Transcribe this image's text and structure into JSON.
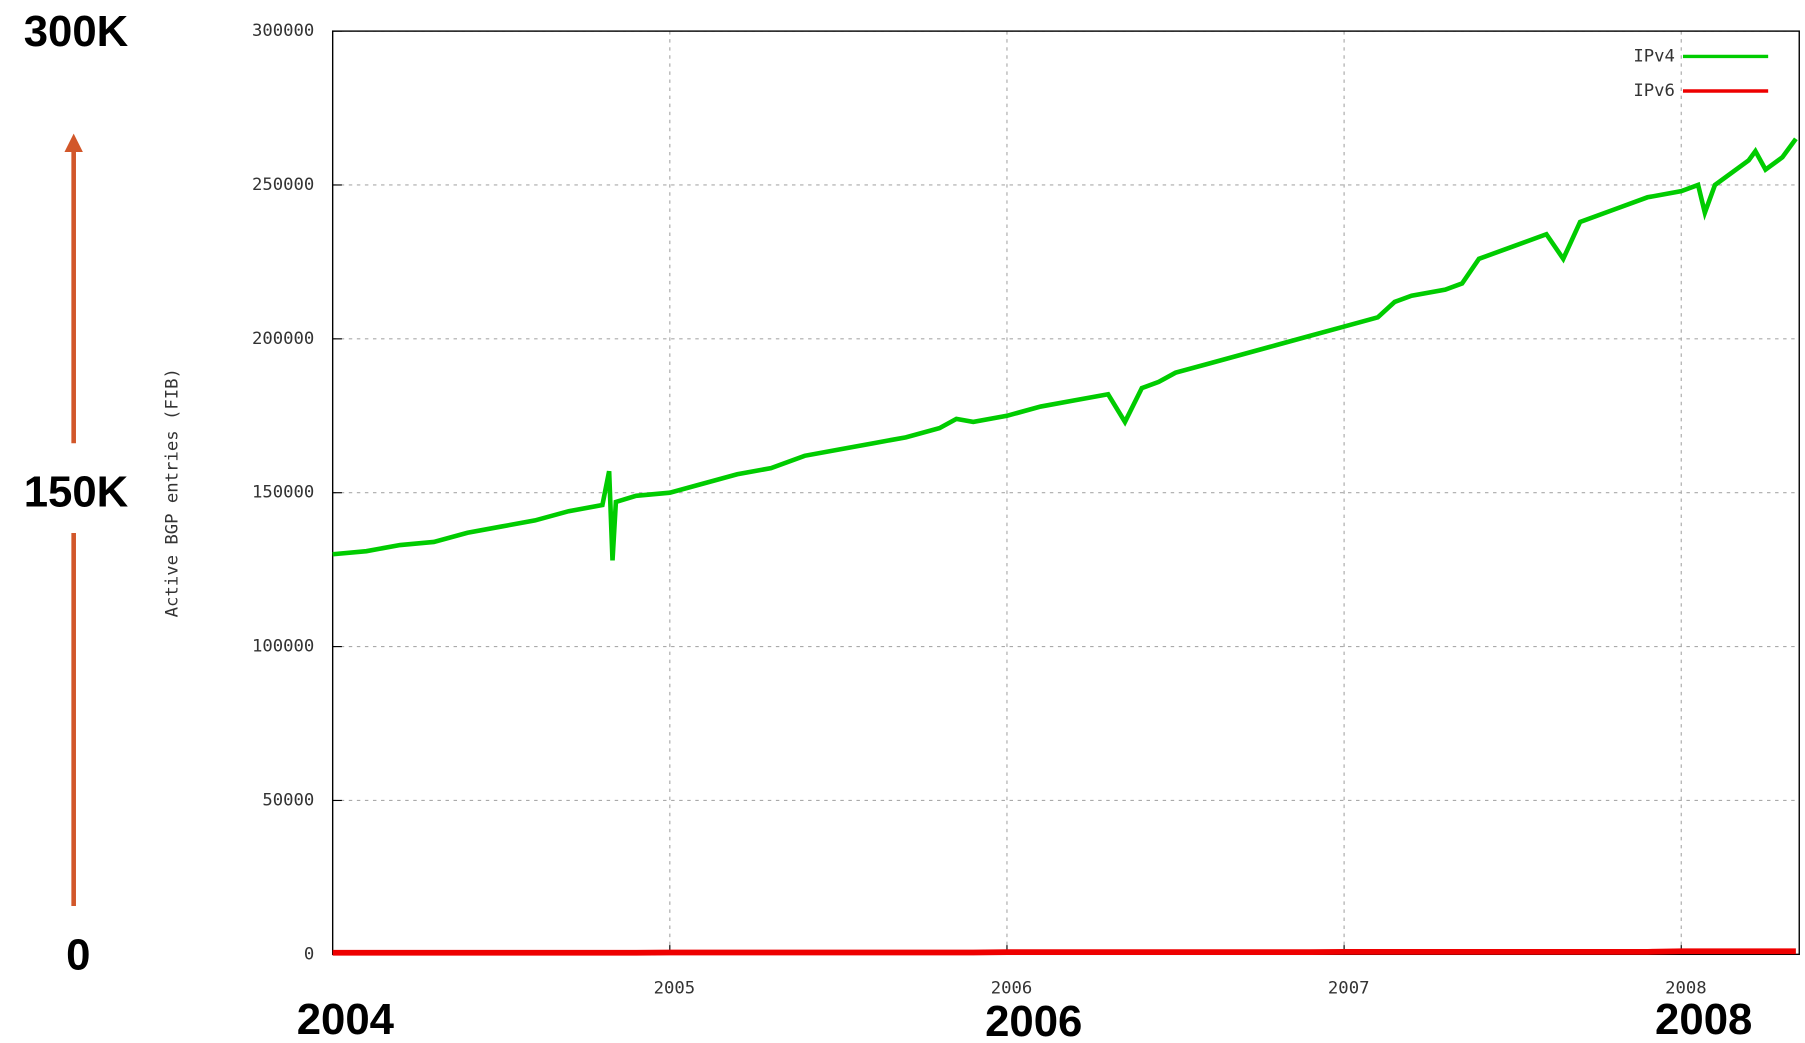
{
  "chart_data": {
    "type": "line",
    "y_label": "Active BGP entries (FIB)",
    "x": [
      2004.0,
      2004.1,
      2004.2,
      2004.3,
      2004.4,
      2004.5,
      2004.6,
      2004.7,
      2004.8,
      2004.82,
      2004.83,
      2004.84,
      2004.9,
      2005.0,
      2005.1,
      2005.2,
      2005.3,
      2005.4,
      2005.5,
      2005.6,
      2005.7,
      2005.8,
      2005.85,
      2005.9,
      2006.0,
      2006.1,
      2006.2,
      2006.3,
      2006.35,
      2006.4,
      2006.45,
      2006.5,
      2006.6,
      2006.7,
      2006.8,
      2006.9,
      2007.0,
      2007.1,
      2007.15,
      2007.2,
      2007.3,
      2007.35,
      2007.4,
      2007.5,
      2007.6,
      2007.65,
      2007.7,
      2007.8,
      2007.9,
      2008.0,
      2008.05,
      2008.07,
      2008.1,
      2008.2,
      2008.22,
      2008.25,
      2008.3,
      2008.34
    ],
    "series": [
      {
        "name": "IPv4",
        "color": "#00cc00",
        "values": [
          130000,
          131000,
          133000,
          134000,
          137000,
          139000,
          141000,
          144000,
          146000,
          157000,
          128000,
          147000,
          149000,
          150000,
          153000,
          156000,
          158000,
          162000,
          164000,
          166000,
          168000,
          171000,
          174000,
          173000,
          175000,
          178000,
          180000,
          182000,
          173000,
          184000,
          186000,
          189000,
          192000,
          195000,
          198000,
          201000,
          204000,
          207000,
          212000,
          214000,
          216000,
          218000,
          226000,
          230000,
          234000,
          226000,
          238000,
          242000,
          246000,
          248000,
          250000,
          241000,
          250000,
          258000,
          261000,
          255000,
          259000,
          265000
        ]
      },
      {
        "name": "IPv6",
        "color": "#ee0000",
        "values": [
          500,
          500,
          500,
          500,
          500,
          500,
          500,
          500,
          500,
          500,
          500,
          500,
          500,
          600,
          600,
          600,
          600,
          600,
          600,
          600,
          600,
          600,
          600,
          600,
          700,
          700,
          700,
          700,
          700,
          700,
          700,
          700,
          700,
          700,
          700,
          700,
          800,
          800,
          800,
          800,
          800,
          800,
          800,
          800,
          800,
          800,
          800,
          800,
          800,
          1000,
          1000,
          1000,
          1000,
          1000,
          1000,
          1000,
          1000,
          1000
        ]
      }
    ],
    "xlim": [
      2004,
      2008.35
    ],
    "xticks": [
      2005,
      2006,
      2007,
      2008
    ],
    "ylim": [
      0,
      300000
    ],
    "yticks": [
      0,
      50000,
      100000,
      150000,
      200000,
      250000,
      300000
    ],
    "grid": true,
    "legend": "upper right",
    "annotations": [
      "300K",
      "150K",
      "0",
      "2004",
      "2006",
      "2008"
    ]
  }
}
